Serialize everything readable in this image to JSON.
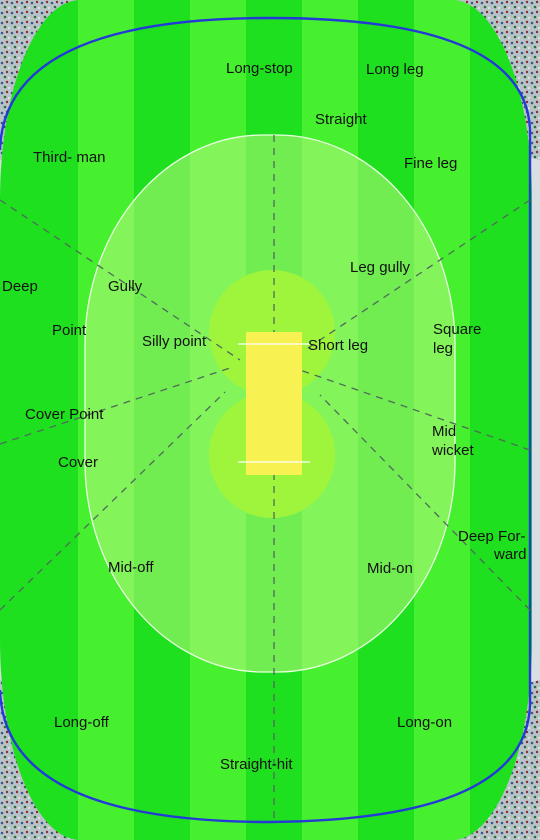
{
  "colors": {
    "grass_dark": "#1ee01e",
    "grass_light": "#46f02e",
    "infield_tint": "#9ef56e",
    "inner_circle": "#9ff53c",
    "pitch": "#f7f251",
    "boundary_rope": "#2339d8",
    "stands": "#c9d2d6"
  },
  "positions": {
    "long_stop": "Long-stop",
    "long_leg": "Long leg",
    "straight": "Straight",
    "third_man": "Third- man",
    "fine_leg": "Fine leg",
    "deep": "Deep",
    "gully": "Gully",
    "leg_gully": "Leg gully",
    "point": "Point",
    "silly_point": "Silly point",
    "short_leg": "Short leg",
    "square_leg_1": "Square",
    "square_leg_2": "leg",
    "cover_point": "Cover Point",
    "mid_wicket_1": "Mid",
    "mid_wicket_2": "wicket",
    "cover": "Cover",
    "deep_forward_1": "Deep For-",
    "deep_forward_2": "ward",
    "mid_off": "Mid-off",
    "mid_on": "Mid-on",
    "long_off": "Long-off",
    "long_on": "Long-on",
    "straight_hit": "Straight-hit"
  }
}
